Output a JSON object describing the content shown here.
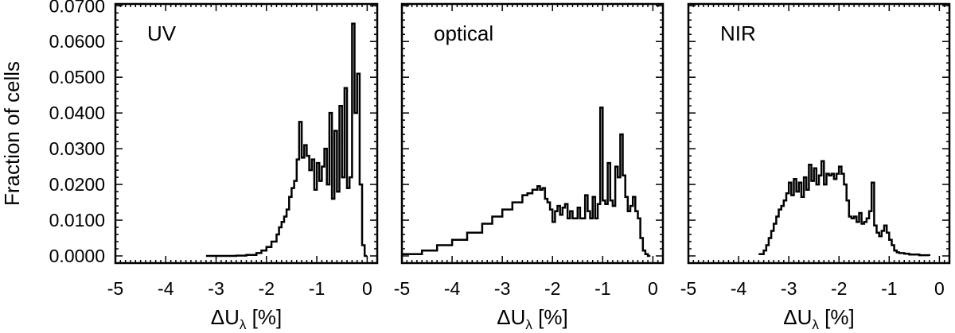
{
  "chart_data": [
    {
      "type": "histogram",
      "panel_label": "UV",
      "xlabel_main": "ΔU",
      "xlabel_sub": "λ",
      "xlabel_unit": "[%]",
      "ylabel": "Fraction of cells",
      "xlim": [
        -5,
        0.2
      ],
      "ylim": [
        -0.002,
        0.0705
      ],
      "xticks": [
        "-5",
        "-4",
        "-3",
        "-2",
        "-1",
        "0"
      ],
      "xtick_values": [
        -5,
        -4,
        -3,
        -2,
        -1,
        0
      ],
      "yticks": [
        "0.0000",
        "0.0100",
        "0.0200",
        "0.0300",
        "0.0400",
        "0.0500",
        "0.0600",
        "0.0700"
      ],
      "ytick_values": [
        0,
        0.01,
        0.02,
        0.03,
        0.04,
        0.05,
        0.06,
        0.07
      ],
      "x": [
        -3.2,
        -2.6,
        -2.4,
        -2.2,
        -2.1,
        -2.0,
        -1.9,
        -1.8,
        -1.75,
        -1.7,
        -1.65,
        -1.6,
        -1.55,
        -1.5,
        -1.45,
        -1.4,
        -1.35,
        -1.3,
        -1.25,
        -1.2,
        -1.15,
        -1.1,
        -1.05,
        -1.0,
        -0.95,
        -0.9,
        -0.85,
        -0.8,
        -0.75,
        -0.7,
        -0.65,
        -0.6,
        -0.55,
        -0.5,
        -0.45,
        -0.4,
        -0.35,
        -0.3,
        -0.25,
        -0.2,
        -0.15,
        -0.1,
        -0.05,
        0.0
      ],
      "y": [
        0.0,
        0.0001,
        0.0003,
        0.0008,
        0.0015,
        0.0025,
        0.004,
        0.006,
        0.008,
        0.0095,
        0.011,
        0.013,
        0.0165,
        0.019,
        0.021,
        0.027,
        0.0375,
        0.0275,
        0.031,
        0.028,
        0.024,
        0.027,
        0.0185,
        0.026,
        0.021,
        0.025,
        0.03,
        0.02,
        0.04,
        0.016,
        0.035,
        0.018,
        0.042,
        0.022,
        0.047,
        0.019,
        0.022,
        0.065,
        0.04,
        0.051,
        0.02,
        0.003,
        0.0,
        0.0
      ]
    },
    {
      "type": "histogram",
      "panel_label": "optical",
      "xlabel_main": "ΔU",
      "xlabel_sub": "λ",
      "xlabel_unit": "[%]",
      "xlim": [
        -5,
        0.2
      ],
      "ylim": [
        -0.002,
        0.0705
      ],
      "xticks": [
        "-5",
        "-4",
        "-3",
        "-2",
        "-1",
        "0"
      ],
      "xtick_values": [
        -5,
        -4,
        -3,
        -2,
        -1,
        0
      ],
      "x": [
        -5.0,
        -4.6,
        -4.3,
        -4.0,
        -3.7,
        -3.4,
        -3.2,
        -3.0,
        -2.8,
        -2.6,
        -2.5,
        -2.4,
        -2.3,
        -2.25,
        -2.2,
        -2.15,
        -2.1,
        -2.05,
        -2.0,
        -1.95,
        -1.9,
        -1.85,
        -1.8,
        -1.75,
        -1.7,
        -1.65,
        -1.6,
        -1.55,
        -1.5,
        -1.45,
        -1.4,
        -1.35,
        -1.3,
        -1.25,
        -1.2,
        -1.15,
        -1.1,
        -1.05,
        -1.0,
        -0.95,
        -0.9,
        -0.85,
        -0.8,
        -0.75,
        -0.7,
        -0.65,
        -0.6,
        -0.55,
        -0.5,
        -0.45,
        -0.4,
        -0.35,
        -0.3,
        -0.25,
        -0.2,
        -0.15,
        -0.1,
        -0.05
      ],
      "y": [
        0.0005,
        0.0015,
        0.003,
        0.0045,
        0.0065,
        0.009,
        0.011,
        0.013,
        0.015,
        0.017,
        0.0175,
        0.0185,
        0.0195,
        0.0185,
        0.019,
        0.016,
        0.015,
        0.013,
        0.0095,
        0.0125,
        0.014,
        0.0115,
        0.0135,
        0.0145,
        0.0105,
        0.0125,
        0.0105,
        0.0105,
        0.0135,
        0.0105,
        0.0105,
        0.017,
        0.0125,
        0.0105,
        0.0165,
        0.0105,
        0.0145,
        0.0415,
        0.0155,
        0.0145,
        0.026,
        0.0155,
        0.014,
        0.025,
        0.022,
        0.034,
        0.0225,
        0.0165,
        0.0125,
        0.014,
        0.0165,
        0.0125,
        0.0105,
        0.005,
        0.0015,
        0.0005,
        0.0,
        0.0
      ]
    },
    {
      "type": "histogram",
      "panel_label": "NIR",
      "xlabel_main": "ΔU",
      "xlabel_sub": "λ",
      "xlabel_unit": "[%]",
      "xlim": [
        -5,
        0.2
      ],
      "ylim": [
        -0.002,
        0.0705
      ],
      "xticks": [
        "-5",
        "-4",
        "-3",
        "-2",
        "-1",
        "0"
      ],
      "xtick_values": [
        -5,
        -4,
        -3,
        -2,
        -1,
        0
      ],
      "x": [
        -3.6,
        -3.5,
        -3.45,
        -3.4,
        -3.35,
        -3.3,
        -3.25,
        -3.2,
        -3.15,
        -3.1,
        -3.05,
        -3.0,
        -2.95,
        -2.9,
        -2.85,
        -2.8,
        -2.75,
        -2.7,
        -2.65,
        -2.6,
        -2.55,
        -2.5,
        -2.45,
        -2.4,
        -2.35,
        -2.3,
        -2.25,
        -2.2,
        -2.15,
        -2.1,
        -2.05,
        -2.0,
        -1.95,
        -1.9,
        -1.85,
        -1.8,
        -1.75,
        -1.7,
        -1.65,
        -1.6,
        -1.55,
        -1.5,
        -1.45,
        -1.4,
        -1.35,
        -1.3,
        -1.25,
        -1.2,
        -1.15,
        -1.1,
        -1.05,
        -1.0,
        -0.95,
        -0.9,
        -0.85,
        -0.8,
        -0.7,
        -0.6,
        -0.4,
        -0.2
      ],
      "y": [
        0.0005,
        0.0015,
        0.003,
        0.005,
        0.007,
        0.009,
        0.011,
        0.013,
        0.014,
        0.0155,
        0.0175,
        0.0205,
        0.017,
        0.0215,
        0.018,
        0.0205,
        0.0165,
        0.022,
        0.0185,
        0.0255,
        0.021,
        0.0245,
        0.02,
        0.0225,
        0.0265,
        0.02,
        0.023,
        0.0225,
        0.023,
        0.0215,
        0.023,
        0.025,
        0.023,
        0.02,
        0.0155,
        0.011,
        0.0105,
        0.011,
        0.0095,
        0.012,
        0.009,
        0.0095,
        0.0105,
        0.0125,
        0.0205,
        0.0085,
        0.0065,
        0.0055,
        0.007,
        0.0085,
        0.0065,
        0.0045,
        0.003,
        0.0015,
        0.001,
        0.0008,
        0.0006,
        0.0004,
        0.0002,
        0.0
      ]
    }
  ]
}
